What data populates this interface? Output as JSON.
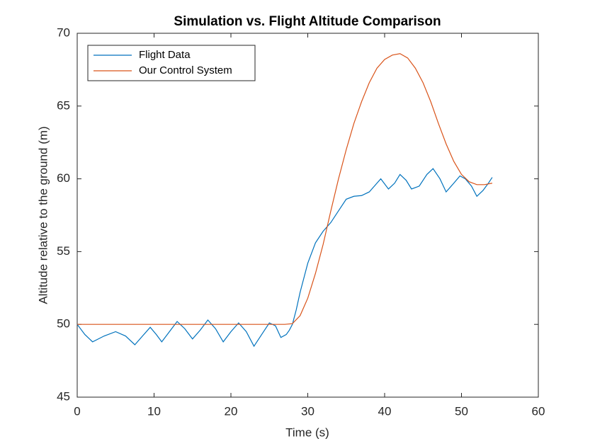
{
  "chart_data": {
    "type": "line",
    "title": "Simulation vs. Flight Altitude Comparison",
    "x_label": "Time (s)",
    "y_label": "Altitude relative to the ground (m)",
    "xlim": [
      0,
      60
    ],
    "xticks": [
      0,
      10,
      20,
      30,
      40,
      50,
      60
    ],
    "ylim": [
      45,
      70
    ],
    "yticks": [
      45,
      50,
      55,
      60,
      65,
      70
    ],
    "legend": "upper left",
    "series": [
      {
        "name": "Flight Data",
        "color": "#0072BD",
        "x": [
          0,
          1,
          2,
          3.5,
          5,
          6.3,
          7.5,
          8.5,
          9.5,
          10.3,
          11,
          12,
          13,
          14,
          15,
          16,
          17,
          18,
          19,
          20,
          21,
          22,
          23,
          24,
          25,
          25.8,
          26.5,
          27.2,
          27.6,
          28,
          28.5,
          29,
          30,
          31,
          32,
          33,
          34,
          35,
          36,
          37,
          38,
          39,
          39.5,
          40.5,
          41.3,
          42,
          42.8,
          43.5,
          44.5,
          45.5,
          46.3,
          47.2,
          48,
          49,
          49.8,
          50.5,
          51.3,
          52,
          52.8,
          53.5,
          54
        ],
        "values": [
          50,
          49.3,
          48.8,
          49.2,
          49.5,
          49.2,
          48.6,
          49.2,
          49.8,
          49.3,
          48.8,
          49.5,
          50.2,
          49.7,
          49.0,
          49.6,
          50.3,
          49.7,
          48.8,
          49.5,
          50.1,
          49.5,
          48.5,
          49.3,
          50.1,
          49.9,
          49.1,
          49.3,
          49.6,
          50.0,
          51.0,
          52.2,
          54.2,
          55.6,
          56.4,
          57.0,
          57.8,
          58.6,
          58.8,
          58.85,
          59.1,
          59.7,
          60.0,
          59.3,
          59.7,
          60.3,
          59.9,
          59.3,
          59.5,
          60.3,
          60.7,
          60.0,
          59.1,
          59.7,
          60.2,
          60.0,
          59.5,
          58.8,
          59.2,
          59.7,
          60.1
        ]
      },
      {
        "name": "Our Control System",
        "color": "#D95319",
        "x": [
          0,
          27,
          28,
          29,
          30,
          31,
          32,
          33,
          34,
          35,
          36,
          37,
          38,
          39,
          40,
          41,
          42,
          43,
          44,
          45,
          46,
          47,
          48,
          49,
          50,
          51,
          52,
          53,
          54
        ],
        "values": [
          50,
          50,
          50.05,
          50.6,
          51.8,
          53.5,
          55.5,
          57.8,
          60.0,
          62.0,
          63.8,
          65.3,
          66.6,
          67.6,
          68.2,
          68.5,
          68.6,
          68.3,
          67.6,
          66.6,
          65.3,
          63.8,
          62.4,
          61.2,
          60.3,
          59.8,
          59.6,
          59.6,
          59.7
        ]
      }
    ]
  }
}
